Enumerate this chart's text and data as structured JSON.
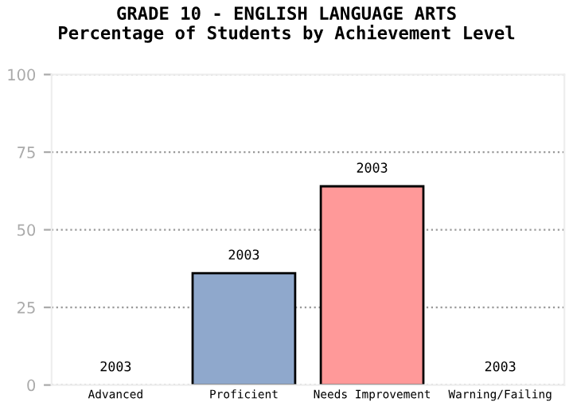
{
  "chart_data": {
    "type": "bar",
    "title": "GRADE 10 - ENGLISH LANGUAGE ARTS\nPercentage of Students by Achievement Level",
    "categories": [
      "Advanced",
      "Proficient",
      "Needs Improvement",
      "Warning/Failing"
    ],
    "series": [
      {
        "name": "2003",
        "values": [
          0,
          36,
          64,
          0
        ],
        "colors": [
          "#8fa8cc",
          "#8fa8cc",
          "#ff9999",
          "#ff9999"
        ]
      }
    ],
    "ylim": [
      0,
      100
    ],
    "yticks": [
      0,
      25,
      50,
      75,
      100
    ],
    "grid": "y"
  }
}
